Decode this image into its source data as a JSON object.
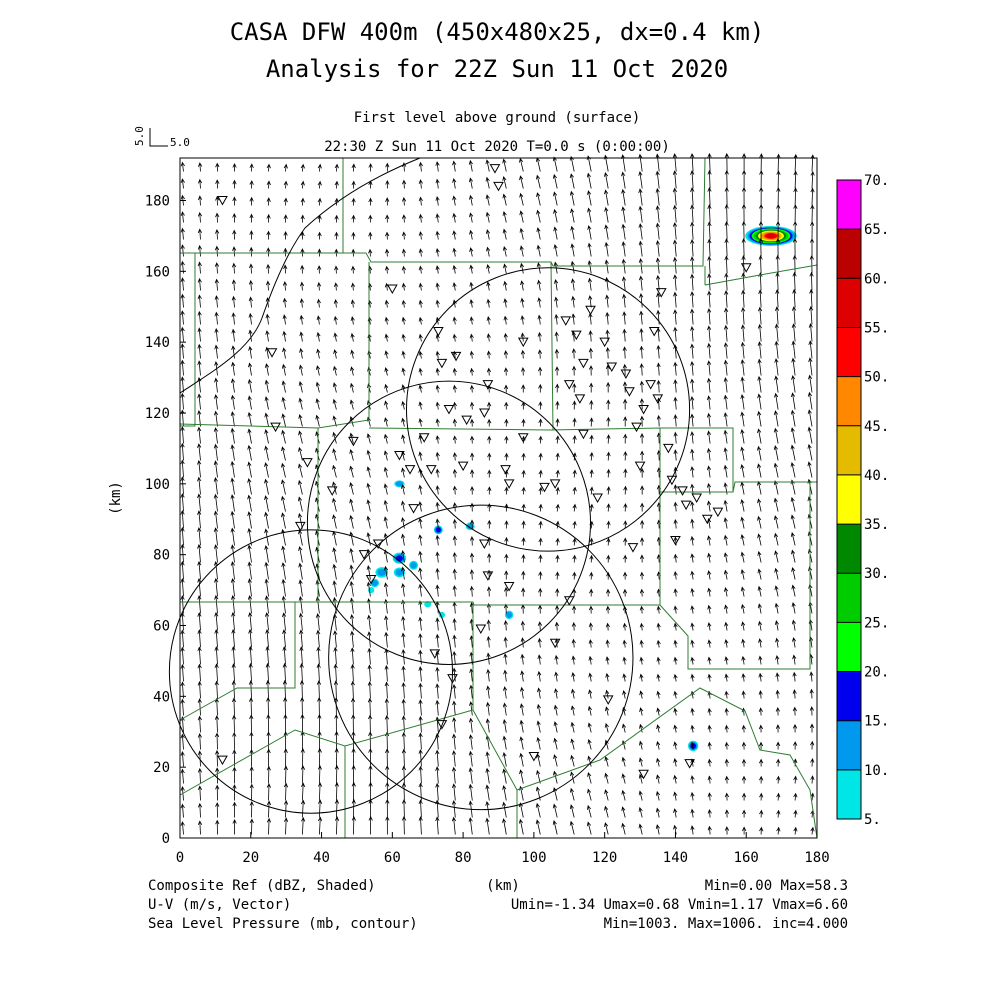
{
  "header": {
    "title_line1": "CASA DFW 400m (450x480x25, dx=0.4 km)",
    "title_line2": "Analysis for 22Z Sun 11 Oct 2020",
    "level": "First level above ground (surface)",
    "time_line": "22:30 Z Sun 11 Oct 2020    T=0.0 s (0:00:00)"
  },
  "vector_scale": {
    "rotated_label": "5.0",
    "label": "5.0"
  },
  "footer": {
    "left": [
      "Composite Ref (dBZ, Shaded)",
      "U-V (m/s, Vector)",
      "Sea Level Pressure (mb, contour)"
    ],
    "center": "(km)",
    "right": [
      "Min=0.00 Max=58.3",
      "Umin=-1.34 Umax=0.68 Vmin=1.17 Vmax=6.60",
      "Min=1003. Max=1006. inc=4.000"
    ]
  },
  "colorbar": {
    "labels": [
      "5.",
      "10.",
      "15.",
      "20.",
      "25.",
      "30.",
      "35.",
      "40.",
      "45.",
      "50.",
      "55.",
      "60.",
      "65.",
      "70."
    ],
    "colors": [
      "#00e5e5",
      "#0099ee",
      "#0000ee",
      "#00ff00",
      "#00cc00",
      "#008800",
      "#ffff00",
      "#e5bb00",
      "#ff8800",
      "#ff0000",
      "#dd0000",
      "#bb0000",
      "#ff00ff"
    ]
  },
  "chart_data": {
    "type": "map",
    "xlabel": "(km)",
    "ylabel": "(km)",
    "xlim": [
      0,
      180
    ],
    "ylim": [
      0,
      192
    ],
    "xticks": [
      0,
      20,
      40,
      60,
      80,
      100,
      120,
      140,
      160,
      180
    ],
    "yticks": [
      0,
      20,
      40,
      60,
      80,
      100,
      120,
      140,
      160,
      180
    ],
    "radar_range_rings": [
      {
        "center": [
          104,
          121
        ],
        "radius": 40
      },
      {
        "center": [
          76,
          89
        ],
        "radius": 40
      },
      {
        "center": [
          37,
          47
        ],
        "radius": 40
      },
      {
        "center": [
          85,
          51
        ],
        "radius": 43
      }
    ],
    "reflectivity_cells": [
      {
        "x": 167,
        "y": 170,
        "rx": 7,
        "ry": 2.5,
        "dbz": 55
      },
      {
        "x": 145,
        "y": 26,
        "rx": 1.2,
        "ry": 1.2,
        "dbz": 15
      },
      {
        "x": 62,
        "y": 79,
        "rx": 1.6,
        "ry": 1.3,
        "dbz": 15
      },
      {
        "x": 57,
        "y": 75,
        "rx": 1.5,
        "ry": 1.2,
        "dbz": 12
      },
      {
        "x": 62,
        "y": 75,
        "rx": 1.3,
        "ry": 1.1,
        "dbz": 12
      },
      {
        "x": 55,
        "y": 72,
        "rx": 1.0,
        "ry": 0.9,
        "dbz": 12
      },
      {
        "x": 66,
        "y": 77,
        "rx": 1.0,
        "ry": 1.0,
        "dbz": 12
      },
      {
        "x": 73,
        "y": 87,
        "rx": 1.0,
        "ry": 1.0,
        "dbz": 15
      },
      {
        "x": 82,
        "y": 88,
        "rx": 1.0,
        "ry": 0.8,
        "dbz": 12
      },
      {
        "x": 62,
        "y": 100,
        "rx": 1.2,
        "ry": 0.7,
        "dbz": 12
      },
      {
        "x": 93,
        "y": 63,
        "rx": 0.9,
        "ry": 0.9,
        "dbz": 10
      },
      {
        "x": 70,
        "y": 66,
        "rx": 0.7,
        "ry": 0.6,
        "dbz": 8
      },
      {
        "x": 54,
        "y": 70,
        "rx": 0.6,
        "ry": 0.6,
        "dbz": 8
      },
      {
        "x": 74,
        "y": 63,
        "rx": 0.6,
        "ry": 0.6,
        "dbz": 8
      }
    ],
    "stations": [
      [
        12,
        180
      ],
      [
        26,
        137
      ],
      [
        34,
        88
      ],
      [
        36,
        106
      ],
      [
        43,
        98
      ],
      [
        49,
        112
      ],
      [
        52,
        80
      ],
      [
        54,
        73
      ],
      [
        56,
        83
      ],
      [
        62,
        108
      ],
      [
        65,
        104
      ],
      [
        66,
        93
      ],
      [
        69,
        113
      ],
      [
        71,
        104
      ],
      [
        74,
        134
      ],
      [
        76,
        121
      ],
      [
        78,
        136
      ],
      [
        80,
        105
      ],
      [
        81,
        118
      ],
      [
        86,
        120
      ],
      [
        87,
        128
      ],
      [
        92,
        104
      ],
      [
        93,
        100
      ],
      [
        97,
        113
      ],
      [
        97,
        140
      ],
      [
        103,
        99
      ],
      [
        106,
        100
      ],
      [
        109,
        146
      ],
      [
        110,
        128
      ],
      [
        112,
        142
      ],
      [
        113,
        124
      ],
      [
        114,
        114
      ],
      [
        116,
        149
      ],
      [
        118,
        96
      ],
      [
        120,
        140
      ],
      [
        122,
        133
      ],
      [
        126,
        131
      ],
      [
        127,
        126
      ],
      [
        129,
        116
      ],
      [
        131,
        121
      ],
      [
        133,
        128
      ],
      [
        134,
        143
      ],
      [
        135,
        124
      ],
      [
        136,
        154
      ],
      [
        138,
        110
      ],
      [
        139,
        101
      ],
      [
        140,
        84
      ],
      [
        142,
        98
      ],
      [
        143,
        94
      ],
      [
        146,
        96
      ],
      [
        149,
        90
      ],
      [
        152,
        92
      ],
      [
        130,
        105
      ],
      [
        128,
        82
      ],
      [
        110,
        67
      ],
      [
        106,
        55
      ],
      [
        121,
        39
      ],
      [
        131,
        18
      ],
      [
        144,
        21
      ],
      [
        93,
        71
      ],
      [
        86,
        83
      ],
      [
        87,
        74
      ],
      [
        77,
        45
      ],
      [
        72,
        52
      ],
      [
        74,
        32
      ],
      [
        85,
        59
      ],
      [
        100,
        23
      ],
      [
        12,
        22
      ],
      [
        27,
        116
      ],
      [
        60,
        155
      ],
      [
        89,
        189
      ],
      [
        90,
        184
      ],
      [
        160,
        161
      ],
      [
        73,
        143
      ],
      [
        114,
        134
      ]
    ],
    "wind_field": {
      "spacing_km": 4.8,
      "u_range": [
        -1.34,
        0.68
      ],
      "v_range": [
        1.17,
        6.6
      ]
    }
  }
}
